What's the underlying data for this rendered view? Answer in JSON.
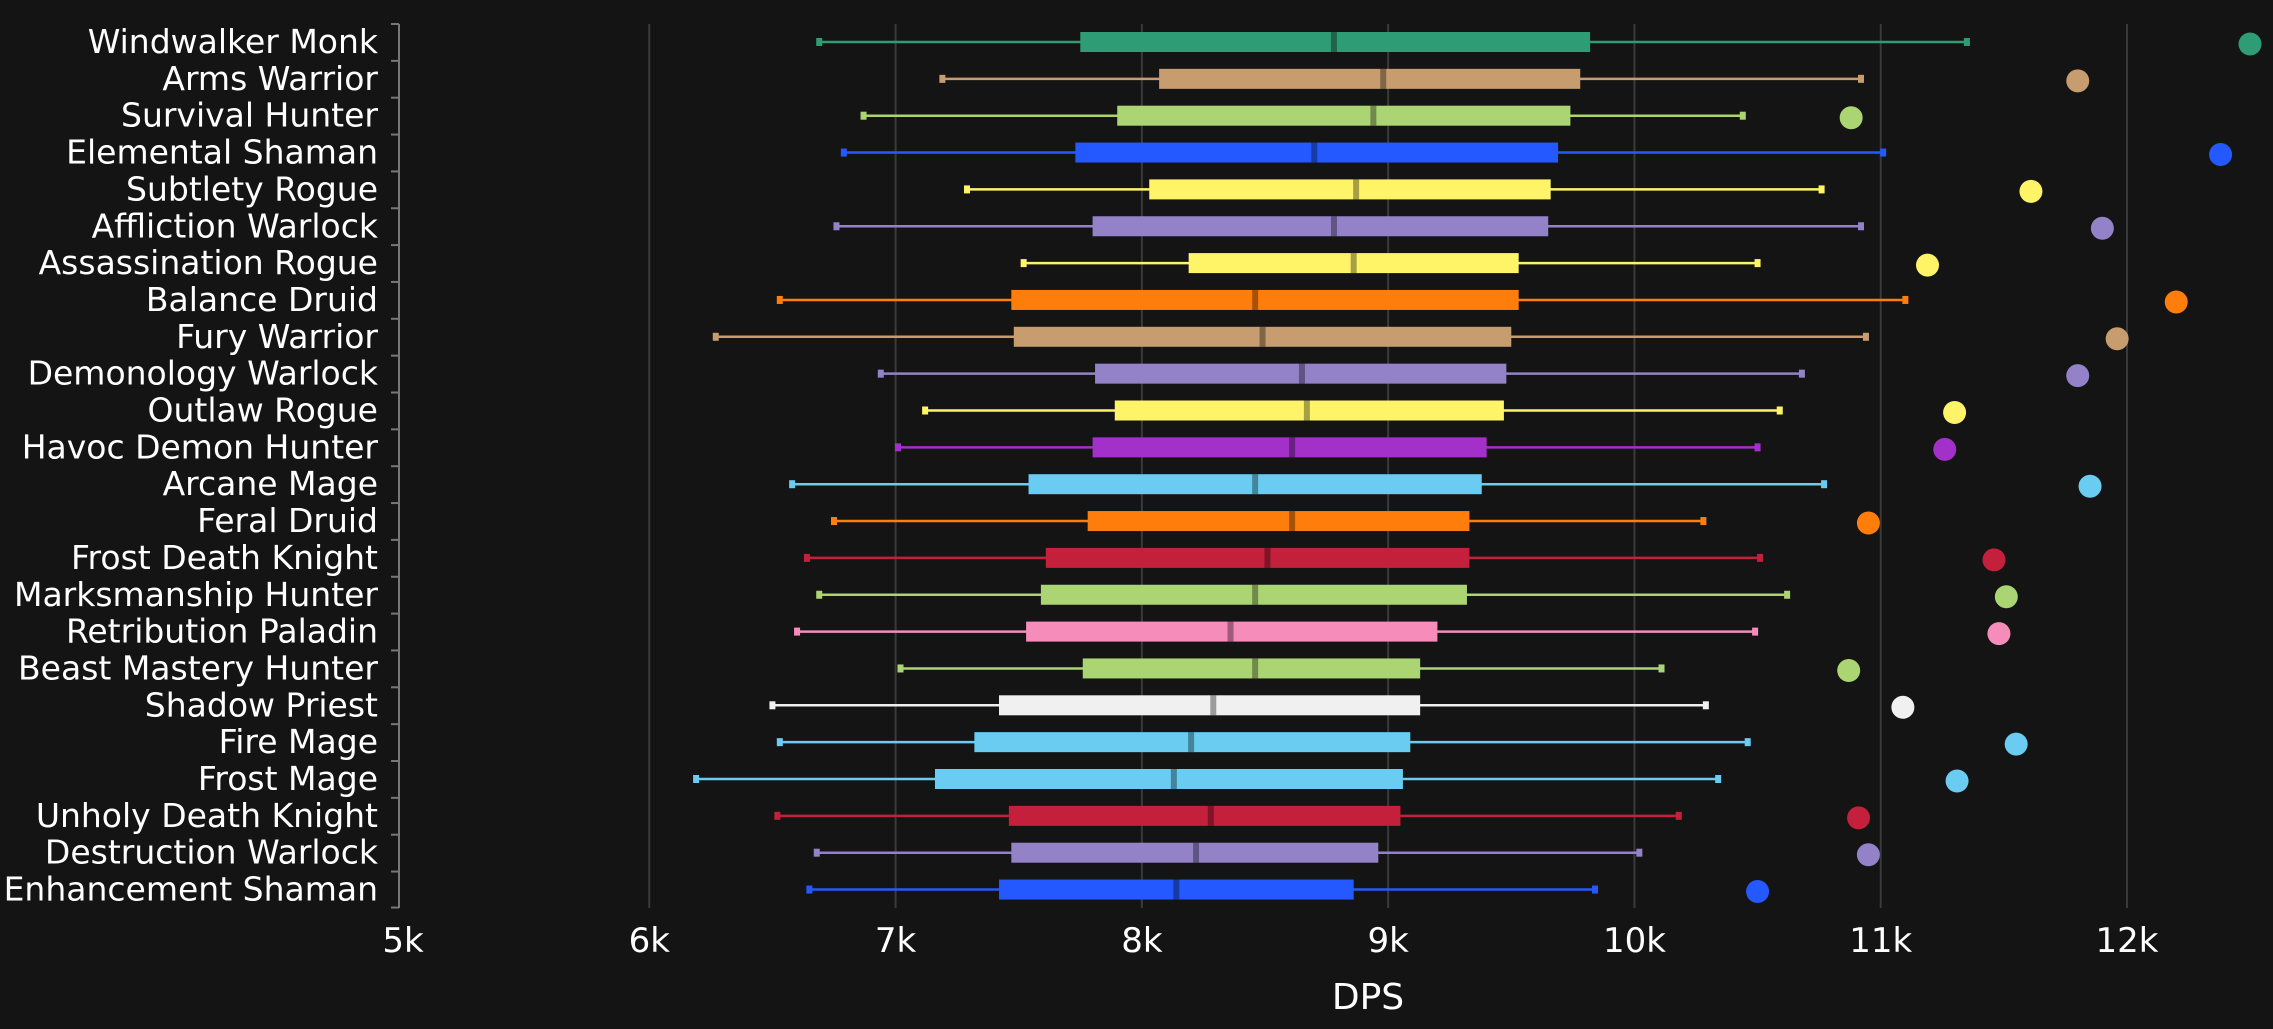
{
  "chart_data": {
    "type": "box",
    "orientation": "horizontal",
    "xlabel": "DPS",
    "ylabel": "",
    "xlim": [
      5000,
      12500
    ],
    "x_ticks": [
      5000,
      6000,
      7000,
      8000,
      9000,
      10000,
      11000,
      12000
    ],
    "x_tick_labels": [
      "5k",
      "6k",
      "7k",
      "8k",
      "9k",
      "10k",
      "11k",
      "12k"
    ],
    "grid": "vertical",
    "legend": "none",
    "colors": {
      "background": "#141414",
      "grid": "#3a3a3a",
      "axis": "#777777",
      "text": "#ffffff"
    },
    "categories": [
      "Windwalker Monk",
      "Arms Warrior",
      "Survival Hunter",
      "Elemental Shaman",
      "Subtlety Rogue",
      "Affliction Warlock",
      "Assassination Rogue",
      "Balance Druid",
      "Fury Warrior",
      "Demonology Warlock",
      "Outlaw Rogue",
      "Havoc Demon Hunter",
      "Arcane Mage",
      "Feral Druid",
      "Frost Death Knight",
      "Marksmanship Hunter",
      "Retribution Paladin",
      "Beast Mastery Hunter",
      "Shadow Priest",
      "Fire Mage",
      "Frost Mage",
      "Unholy Death Knight",
      "Destruction Warlock",
      "Enhancement Shaman"
    ],
    "boxes": [
      {
        "whisker_low": 6690,
        "q1": 7750,
        "median": 8780,
        "q3": 9820,
        "whisker_high": 11350,
        "outlier": 12550,
        "color": "#2e9c74"
      },
      {
        "whisker_low": 7190,
        "q1": 8070,
        "median": 8980,
        "q3": 9780,
        "whisker_high": 10920,
        "outlier": 11800,
        "color": "#c79c6e"
      },
      {
        "whisker_low": 6870,
        "q1": 7900,
        "median": 8940,
        "q3": 9740,
        "whisker_high": 10440,
        "outlier": 10880,
        "color": "#abd473"
      },
      {
        "whisker_low": 6790,
        "q1": 7730,
        "median": 8700,
        "q3": 9690,
        "whisker_high": 11010,
        "outlier": 12380,
        "color": "#2459ff"
      },
      {
        "whisker_low": 7290,
        "q1": 8030,
        "median": 8870,
        "q3": 9660,
        "whisker_high": 10760,
        "outlier": 11610,
        "color": "#fff468"
      },
      {
        "whisker_low": 6760,
        "q1": 7800,
        "median": 8780,
        "q3": 9650,
        "whisker_high": 10920,
        "outlier": 11900,
        "color": "#9482c9"
      },
      {
        "whisker_low": 7520,
        "q1": 8190,
        "median": 8860,
        "q3": 9530,
        "whisker_high": 10500,
        "outlier": 11190,
        "color": "#fff468"
      },
      {
        "whisker_low": 6530,
        "q1": 7470,
        "median": 8460,
        "q3": 9530,
        "whisker_high": 11100,
        "outlier": 12200,
        "color": "#ff7d0a"
      },
      {
        "whisker_low": 6270,
        "q1": 7480,
        "median": 8490,
        "q3": 9500,
        "whisker_high": 10940,
        "outlier": 11960,
        "color": "#c79c6e"
      },
      {
        "whisker_low": 6940,
        "q1": 7810,
        "median": 8650,
        "q3": 9480,
        "whisker_high": 10680,
        "outlier": 11800,
        "color": "#9482c9"
      },
      {
        "whisker_low": 7120,
        "q1": 7890,
        "median": 8670,
        "q3": 9470,
        "whisker_high": 10590,
        "outlier": 11300,
        "color": "#fff468"
      },
      {
        "whisker_low": 7010,
        "q1": 7800,
        "median": 8610,
        "q3": 9400,
        "whisker_high": 10500,
        "outlier": 11260,
        "color": "#a330c9"
      },
      {
        "whisker_low": 6580,
        "q1": 7540,
        "median": 8460,
        "q3": 9380,
        "whisker_high": 10770,
        "outlier": 11850,
        "color": "#69ccf0"
      },
      {
        "whisker_low": 6750,
        "q1": 7780,
        "median": 8610,
        "q3": 9330,
        "whisker_high": 10280,
        "outlier": 10950,
        "color": "#ff7d0a"
      },
      {
        "whisker_low": 6640,
        "q1": 7610,
        "median": 8510,
        "q3": 9330,
        "whisker_high": 10510,
        "outlier": 11460,
        "color": "#c41f3b"
      },
      {
        "whisker_low": 6690,
        "q1": 7590,
        "median": 8460,
        "q3": 9320,
        "whisker_high": 10620,
        "outlier": 11510,
        "color": "#abd473"
      },
      {
        "whisker_low": 6600,
        "q1": 7530,
        "median": 8360,
        "q3": 9200,
        "whisker_high": 10490,
        "outlier": 11480,
        "color": "#f58cba"
      },
      {
        "whisker_low": 7020,
        "q1": 7760,
        "median": 8460,
        "q3": 9130,
        "whisker_high": 10110,
        "outlier": 10870,
        "color": "#abd473"
      },
      {
        "whisker_low": 6500,
        "q1": 7420,
        "median": 8290,
        "q3": 9130,
        "whisker_high": 10290,
        "outlier": 11090,
        "color": "#f0f0f0"
      },
      {
        "whisker_low": 6530,
        "q1": 7320,
        "median": 8200,
        "q3": 9090,
        "whisker_high": 10460,
        "outlier": 11550,
        "color": "#69ccf0"
      },
      {
        "whisker_low": 6190,
        "q1": 7160,
        "median": 8130,
        "q3": 9060,
        "whisker_high": 10340,
        "outlier": 11310,
        "color": "#69ccf0"
      },
      {
        "whisker_low": 6520,
        "q1": 7460,
        "median": 8280,
        "q3": 9050,
        "whisker_high": 10180,
        "outlier": 10910,
        "color": "#c41f3b"
      },
      {
        "whisker_low": 6680,
        "q1": 7470,
        "median": 8220,
        "q3": 8960,
        "whisker_high": 10020,
        "outlier": 10950,
        "color": "#9482c9"
      },
      {
        "whisker_low": 6650,
        "q1": 7420,
        "median": 8140,
        "q3": 8860,
        "whisker_high": 9840,
        "outlier": 10500,
        "color": "#2459ff"
      }
    ]
  }
}
